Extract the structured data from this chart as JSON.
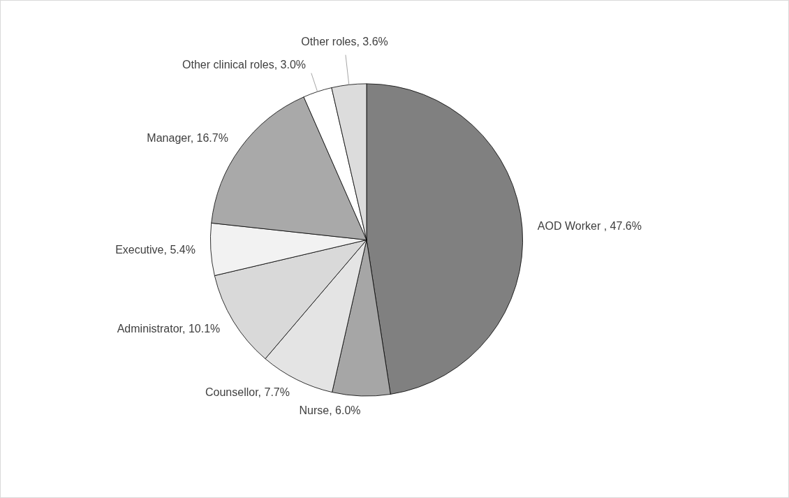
{
  "chart_data": {
    "type": "pie",
    "categories": [
      "AOD Worker ",
      "Nurse",
      "Counsellor",
      "Administrator",
      "Executive",
      "Manager",
      "Other clinical roles",
      "Other roles"
    ],
    "values": [
      47.6,
      6.0,
      7.7,
      10.1,
      5.4,
      16.7,
      3.0,
      3.6
    ],
    "value_labels": [
      "47.6%",
      "6.0%",
      "7.7%",
      "10.1%",
      "5.4%",
      "16.7%",
      "3.0%",
      "3.6%"
    ],
    "colors": [
      "#808080",
      "#a6a6a6",
      "#e4e4e4",
      "#d9d9d9",
      "#f2f2f2",
      "#a9a9a9",
      "#ffffff",
      "#dcdcdc"
    ],
    "legend": false
  }
}
